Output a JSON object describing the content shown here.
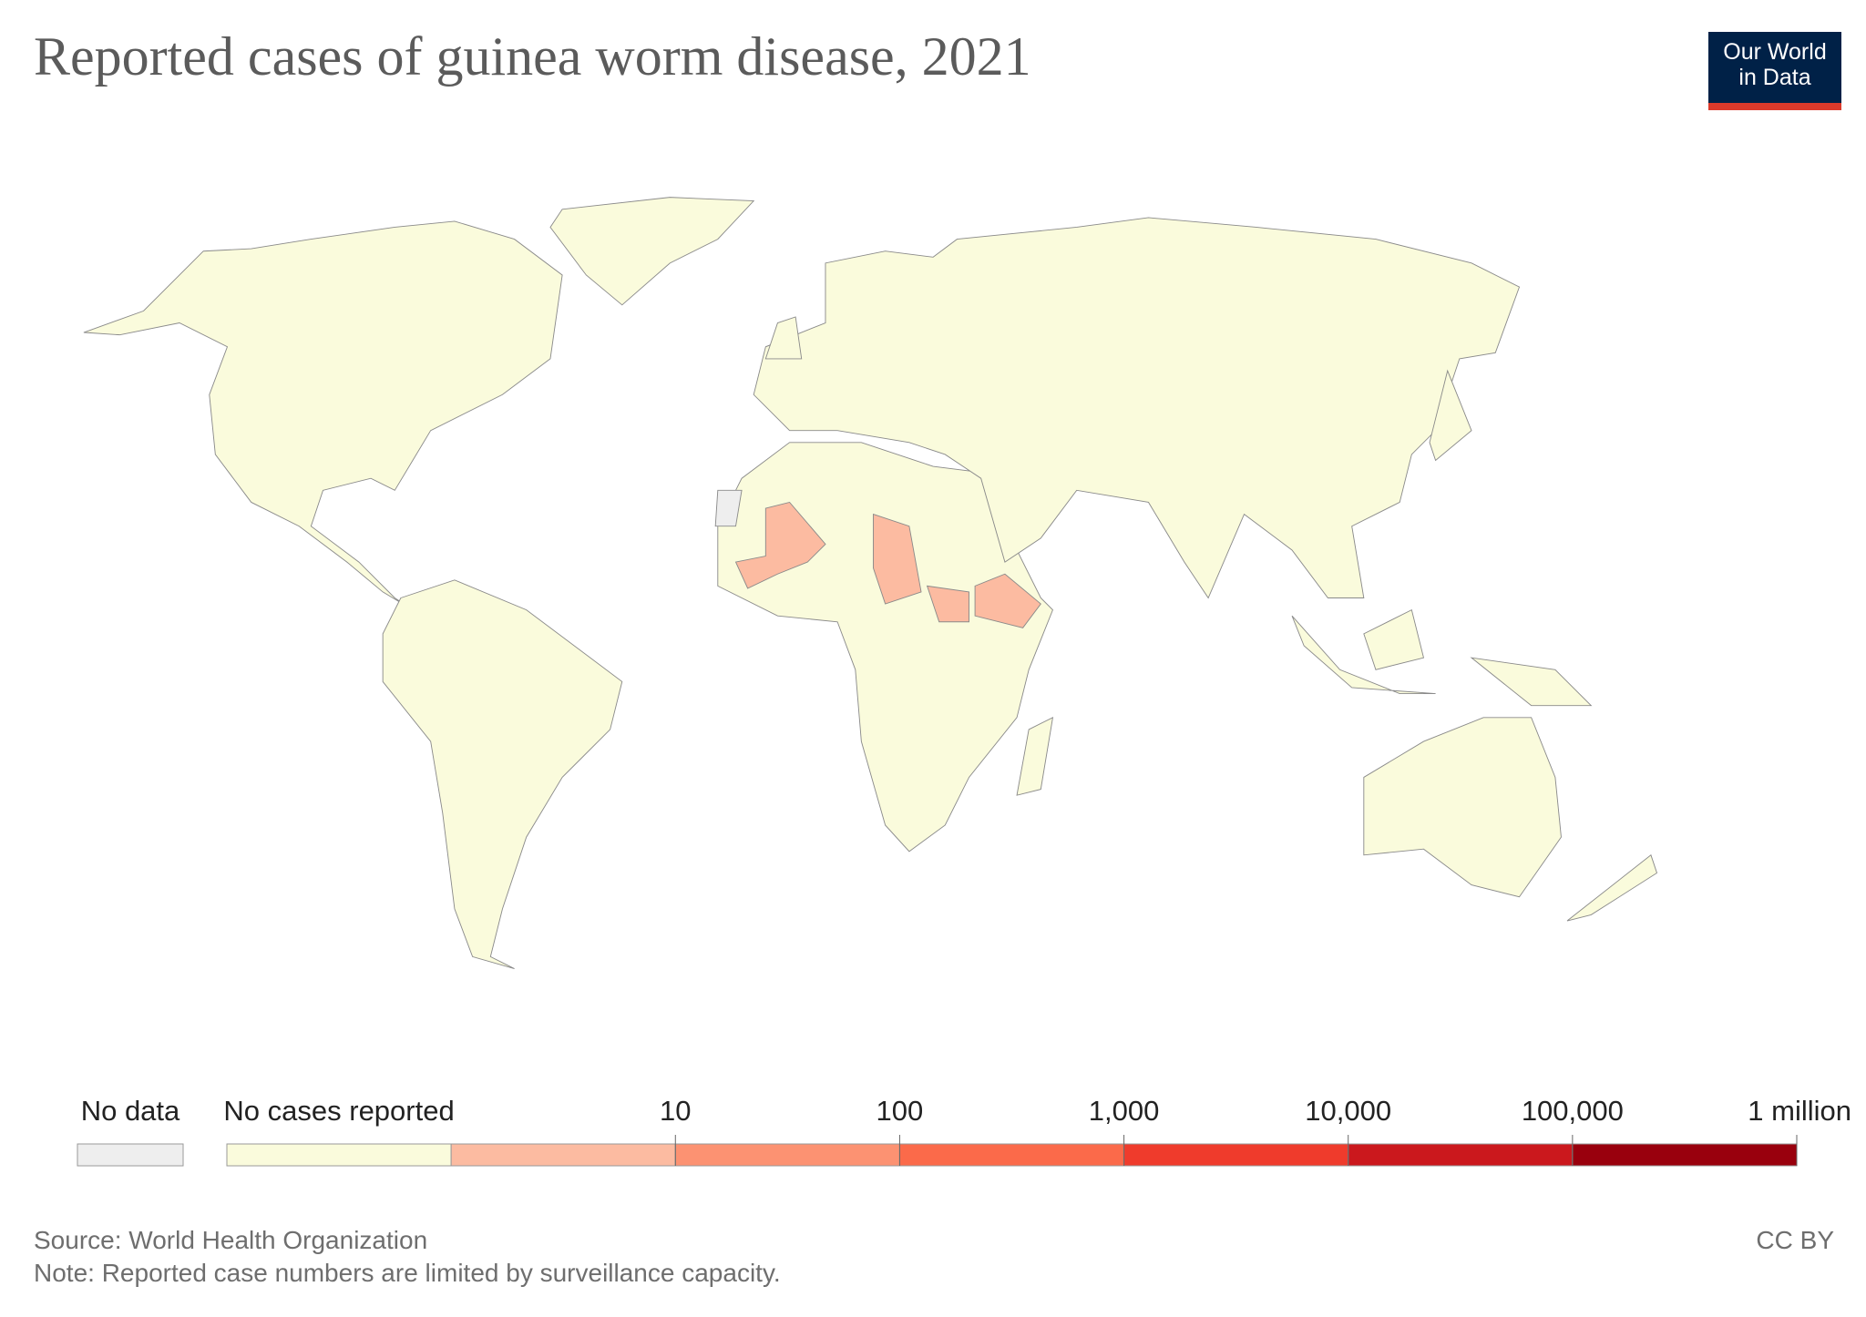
{
  "header": {
    "title": "Reported cases of guinea worm disease, 2021",
    "logo": [
      "Our World",
      "in Data"
    ]
  },
  "legend": {
    "no_data": {
      "label": "No data",
      "color": "#eeeeee"
    },
    "zero": {
      "label": "No cases reported",
      "color": "#fafbdc"
    },
    "colors": [
      "#fcbba1",
      "#fc9272",
      "#fb6a4a",
      "#ef3b2c",
      "#cb181d",
      "#99000d"
    ],
    "scale": "log",
    "ticks": [
      10,
      100,
      {
        "value": 1000,
        "label": "1,000"
      },
      {
        "value": 10000,
        "label": "10,000"
      },
      {
        "value": 100000,
        "label": "100,000"
      },
      {
        "value": 1000000,
        "label": "1 million"
      }
    ]
  },
  "footer": {
    "source": "Source: World Health Organization",
    "note": "Note: Reported case numbers are limited by surveillance capacity.",
    "license": "CC BY"
  }
}
